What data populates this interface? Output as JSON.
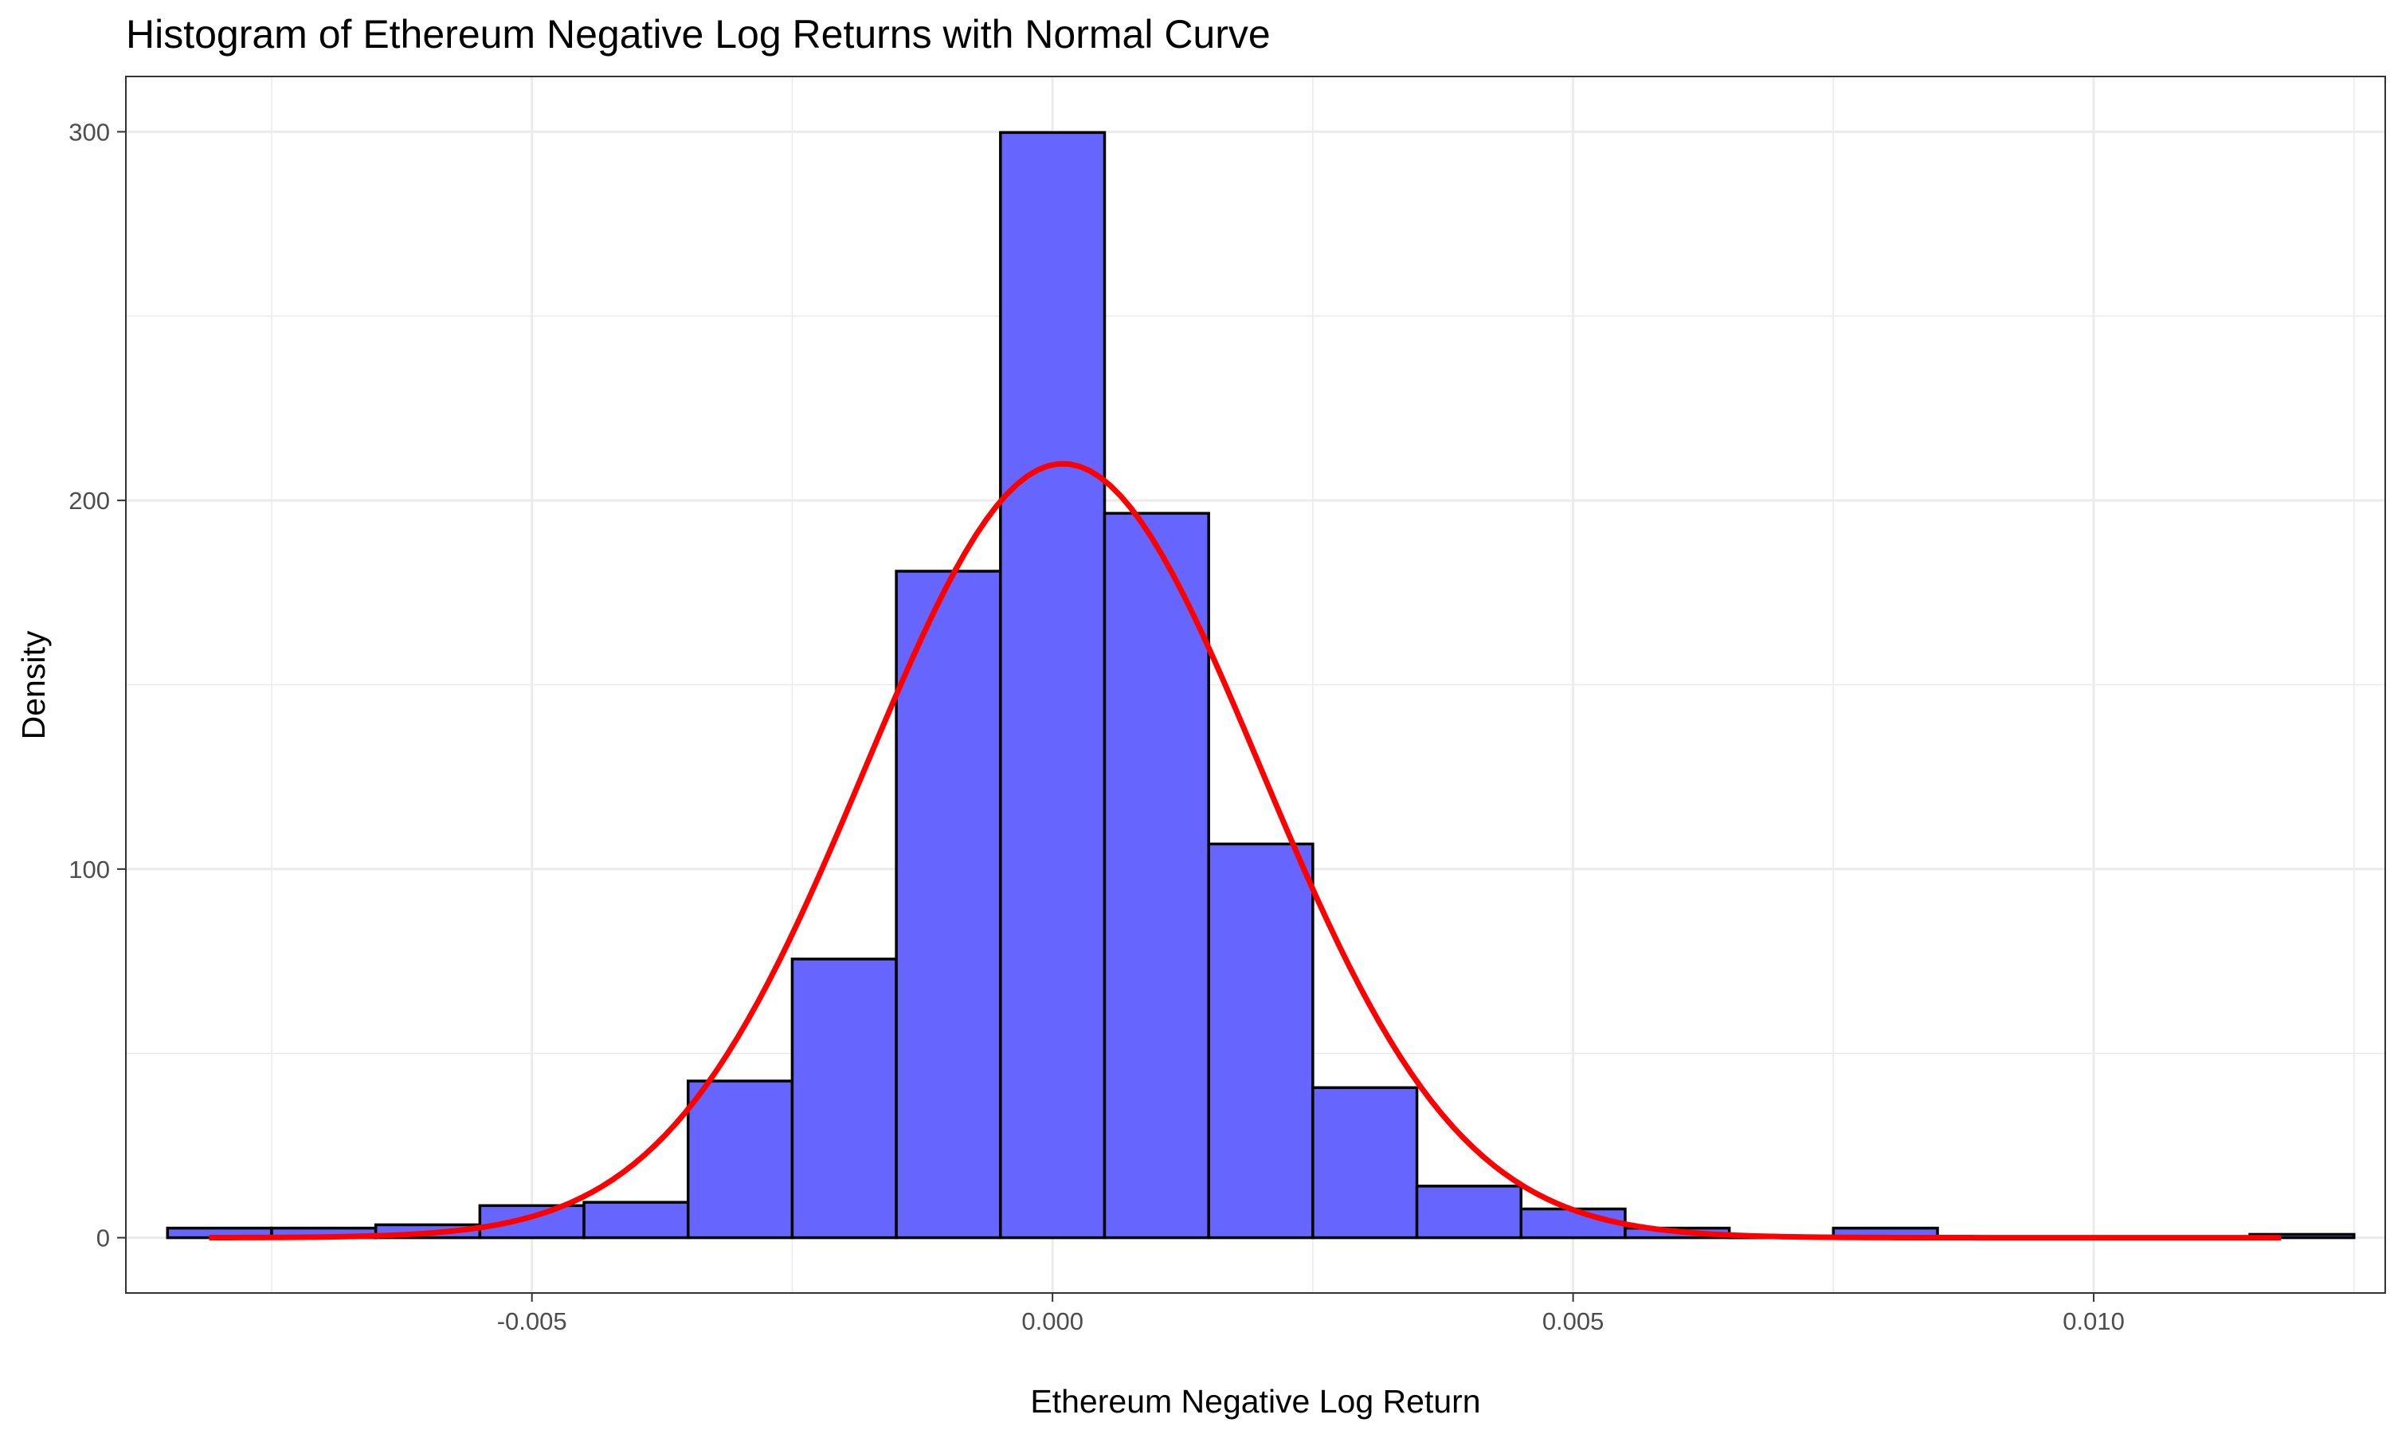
{
  "chart_data": {
    "type": "bar",
    "title": "Histogram of Ethereum Negative Log Returns with Normal Curve",
    "xlabel": "Ethereum Negative Log Return",
    "ylabel": "Density",
    "xlim": [
      -0.0089,
      0.0128
    ],
    "ylim": [
      -15,
      315
    ],
    "grid": true,
    "x_ticks": [
      {
        "value": -0.005,
        "label": "-0.005"
      },
      {
        "value": 0.0,
        "label": "0.000"
      },
      {
        "value": 0.005,
        "label": "0.005"
      },
      {
        "value": 0.01,
        "label": "0.010"
      }
    ],
    "y_ticks": [
      {
        "value": 0,
        "label": "0"
      },
      {
        "value": 100,
        "label": "100"
      },
      {
        "value": 200,
        "label": "200"
      },
      {
        "value": 300,
        "label": "300"
      }
    ],
    "bin_width": 0.001,
    "bins": [
      {
        "center": -0.008,
        "density": 2.6
      },
      {
        "center": -0.007,
        "density": 2.6
      },
      {
        "center": -0.006,
        "density": 3.5
      },
      {
        "center": -0.005,
        "density": 8.7
      },
      {
        "center": -0.004,
        "density": 9.6
      },
      {
        "center": -0.003,
        "density": 42.5
      },
      {
        "center": -0.002,
        "density": 75.6
      },
      {
        "center": -0.001,
        "density": 180.8
      },
      {
        "center": 0.0,
        "density": 299.8
      },
      {
        "center": 0.001,
        "density": 196.5
      },
      {
        "center": 0.002,
        "density": 106.8
      },
      {
        "center": 0.003,
        "density": 40.7
      },
      {
        "center": 0.004,
        "density": 14.0
      },
      {
        "center": 0.005,
        "density": 7.8
      },
      {
        "center": 0.006,
        "density": 2.6
      },
      {
        "center": 0.007,
        "density": 0
      },
      {
        "center": 0.008,
        "density": 2.6
      },
      {
        "center": 0.009,
        "density": 0
      },
      {
        "center": 0.01,
        "density": 0
      },
      {
        "center": 0.011,
        "density": 0
      },
      {
        "center": 0.012,
        "density": 0.9
      }
    ],
    "bar_fill": "#6666ff",
    "bar_stroke": "#000000",
    "normal_curve": {
      "mean": 0.0001,
      "sd": 0.0019,
      "x_range": [
        -0.0081,
        0.0118
      ],
      "color": "#ff0000"
    }
  }
}
